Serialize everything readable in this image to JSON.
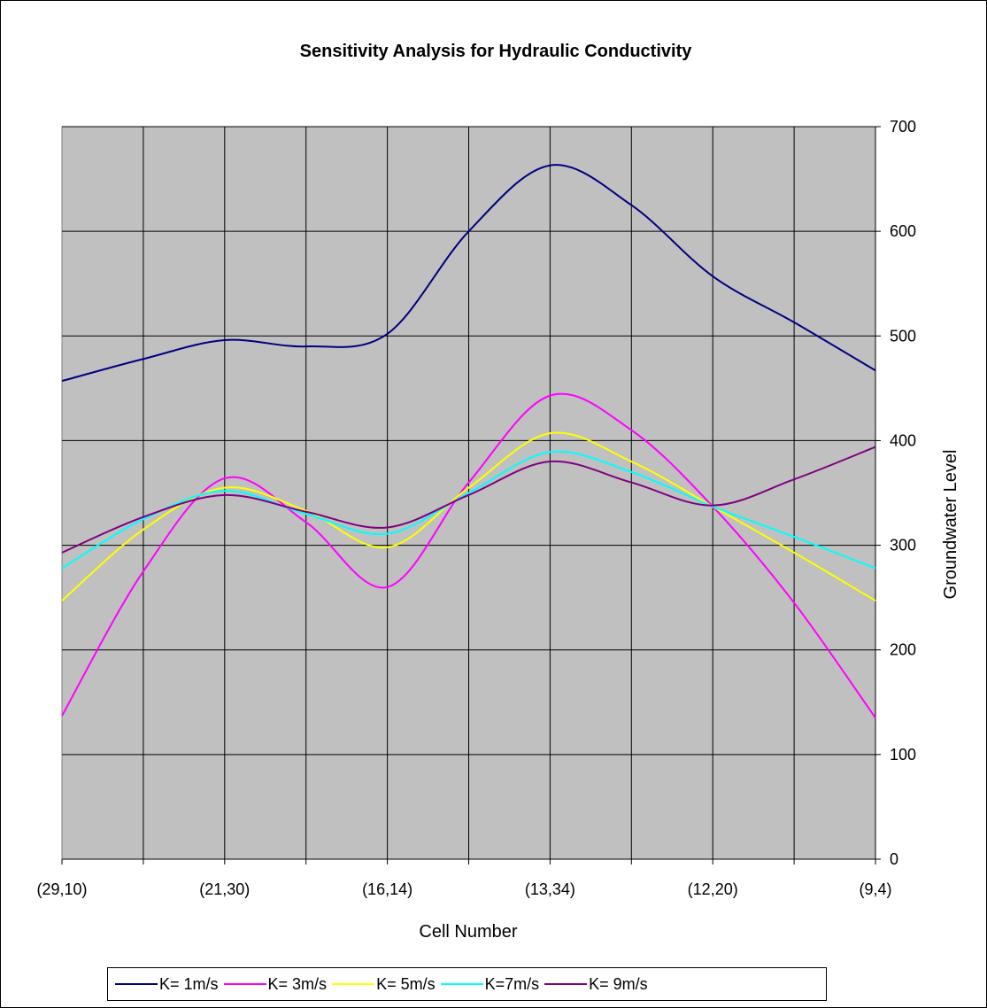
{
  "chart_data": {
    "type": "line",
    "title": "Sensitivity Analysis for Hydraulic Conductivity",
    "xlabel": "Cell Number",
    "ylabel": "Groundwater Level",
    "categories": [
      "(29,10)",
      "",
      "(21,30)",
      "",
      "(16,14)",
      "",
      "(13,34)",
      "",
      "(12,20)",
      "",
      "(9,4)"
    ],
    "ylim": [
      0,
      700
    ],
    "yticks": [
      "0",
      "100",
      "200",
      "300",
      "400",
      "500",
      "600",
      "700"
    ],
    "grid": true,
    "y_axis_side": "right",
    "legend_position": "bottom",
    "plot_background": "#c0c0c0",
    "series": [
      {
        "name": "K= 1m/s",
        "color": "#000080",
        "values": [
          457,
          478,
          496,
          490,
          502,
          600,
          663,
          625,
          557,
          513,
          467
        ]
      },
      {
        "name": "K= 3m/s",
        "color": "#ff00ff",
        "values": [
          137,
          275,
          364,
          322,
          260,
          360,
          443,
          410,
          337,
          245,
          135
        ]
      },
      {
        "name": "K= 5m/s",
        "color": "#ffff00",
        "values": [
          247,
          315,
          355,
          333,
          298,
          355,
          407,
          380,
          337,
          293,
          247
        ]
      },
      {
        "name": "K=7m/s",
        "color": "#00ffff",
        "values": [
          278,
          325,
          352,
          330,
          311,
          350,
          389,
          370,
          337,
          308,
          278
        ]
      },
      {
        "name": "K= 9m/s",
        "color": "#800080",
        "values": [
          293,
          327,
          348,
          332,
          317,
          348,
          380,
          360,
          338,
          363,
          394
        ]
      }
    ]
  }
}
